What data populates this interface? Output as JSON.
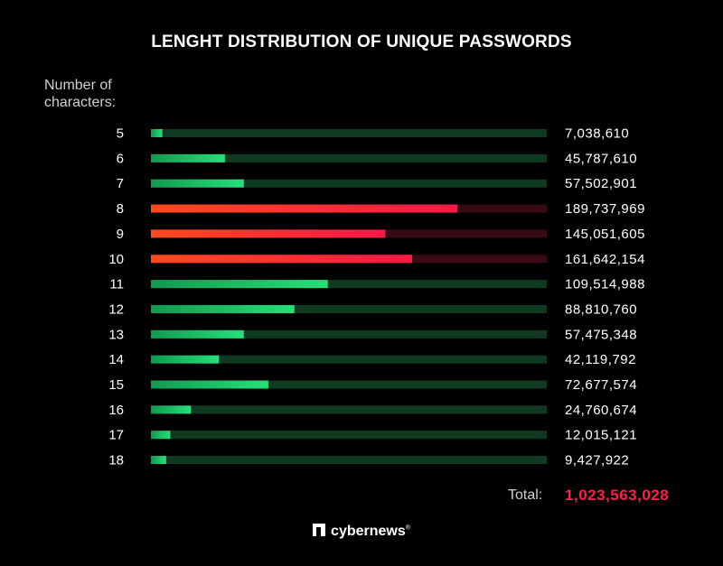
{
  "title": "LENGHT DISTRIBUTION OF UNIQUE PASSWORDS",
  "axis_label": "Number of\ncharacters:",
  "total": {
    "label": "Total:",
    "value": "1,023,563,028"
  },
  "brand": {
    "name": "cybernews",
    "mark": "®"
  },
  "colors": {
    "green_fill": "#1ed46e",
    "green_track": "#0f3a22",
    "red_fill": "#ff2a3d",
    "red_track": "#3a0a14",
    "total": "#ff1f4b"
  },
  "chart_data": {
    "type": "bar",
    "orientation": "horizontal",
    "title": "LENGHT DISTRIBUTION OF UNIQUE PASSWORDS",
    "ylabel": "Number of characters:",
    "categories": [
      "5",
      "6",
      "7",
      "8",
      "9",
      "10",
      "11",
      "12",
      "13",
      "14",
      "15",
      "16",
      "17",
      "18"
    ],
    "values": [
      7038610,
      45787610,
      57502901,
      189737969,
      145051605,
      161642154,
      109514988,
      88810760,
      57475348,
      42119792,
      72677574,
      24760674,
      12015121,
      9427922
    ],
    "labels": [
      "7,038,610",
      "45,787,610",
      "57,502,901",
      "189,737,969",
      "145,051,605",
      "161,642,154",
      "109,514,988",
      "88,810,760",
      "57,475,348",
      "42,119,792",
      "72,677,574",
      "24,760,674",
      "12,015,121",
      "9,427,922"
    ],
    "highlight": [
      "8",
      "9",
      "10"
    ],
    "xlim": [
      0,
      245000000
    ],
    "grid": false
  }
}
